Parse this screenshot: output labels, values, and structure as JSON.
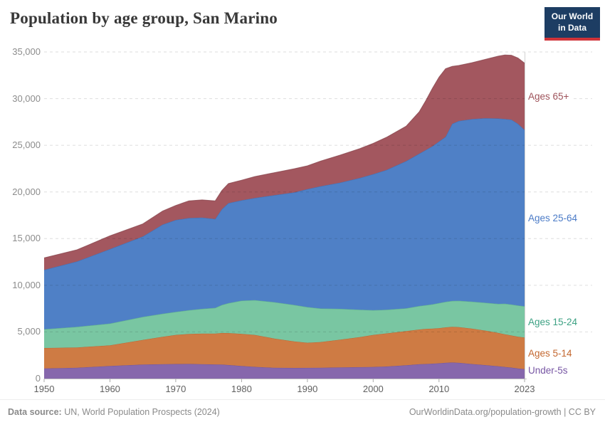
{
  "header": {
    "title": "Population by age group, San Marino"
  },
  "logo": {
    "line1": "Our World",
    "line2": "in Data",
    "bg_color": "#1d3d63",
    "accent_color": "#cf3339"
  },
  "footer": {
    "source_label": "Data source:",
    "source_text": " UN, World Population Prospects (2024)",
    "credit": "OurWorldinData.org/population-growth | CC BY"
  },
  "colors": {
    "grid": "rgba(0,0,0,0.13)",
    "baseline": "#c4c4c4",
    "tick": "#a8a8a8",
    "end_line": "#d2d2d2"
  },
  "chart_data": {
    "type": "area",
    "stacked": true,
    "title": "Population by age group, San Marino",
    "xlabel": "",
    "ylabel": "",
    "xlim": [
      1950,
      2023
    ],
    "ylim": [
      0,
      35000
    ],
    "grid": "dashed-horizontal",
    "legend_position": "right",
    "yticks": [
      {
        "value": 0,
        "label": "0"
      },
      {
        "value": 5000,
        "label": "5,000"
      },
      {
        "value": 10000,
        "label": "10,000"
      },
      {
        "value": 15000,
        "label": "15,000"
      },
      {
        "value": 20000,
        "label": "20,000"
      },
      {
        "value": 25000,
        "label": "25,000"
      },
      {
        "value": 30000,
        "label": "30,000"
      },
      {
        "value": 35000,
        "label": "35,000"
      }
    ],
    "xticks": [
      {
        "value": 1950,
        "label": "1950"
      },
      {
        "value": 1960,
        "label": "1960"
      },
      {
        "value": 1970,
        "label": "1970"
      },
      {
        "value": 1980,
        "label": "1980"
      },
      {
        "value": 1990,
        "label": "1990"
      },
      {
        "value": 2000,
        "label": "2000"
      },
      {
        "value": 2010,
        "label": "2010"
      },
      {
        "value": 2023,
        "label": "2023"
      }
    ],
    "x": [
      1950,
      1955,
      1960,
      1965,
      1968,
      1970,
      1972,
      1974,
      1976,
      1977,
      1978,
      1980,
      1982,
      1985,
      1988,
      1990,
      1992,
      1995,
      1998,
      2000,
      2002,
      2005,
      2007,
      2008,
      2009,
      2010,
      2011,
      2012,
      2013,
      2015,
      2017,
      2019,
      2020,
      2021,
      2022,
      2023
    ],
    "series": [
      {
        "id": "under-5s",
        "name": "Under-5s",
        "color": "#8667ac",
        "edge_color": "#6a4c92",
        "label_color": "#7756a4",
        "values": [
          1080,
          1170,
          1350,
          1500,
          1545,
          1560,
          1570,
          1550,
          1520,
          1500,
          1460,
          1350,
          1260,
          1160,
          1140,
          1150,
          1170,
          1200,
          1230,
          1250,
          1300,
          1430,
          1540,
          1560,
          1600,
          1640,
          1690,
          1720,
          1700,
          1560,
          1450,
          1330,
          1250,
          1180,
          1090,
          1020
        ]
      },
      {
        "id": "ages-5-14",
        "name": "Ages 5-14",
        "color": "#ce7b44",
        "edge_color": "#b05f2c",
        "label_color": "#c3672f",
        "values": [
          2200,
          2170,
          2220,
          2650,
          2935,
          3120,
          3220,
          3270,
          3300,
          3390,
          3420,
          3450,
          3420,
          3130,
          2850,
          2690,
          2750,
          2970,
          3220,
          3430,
          3540,
          3660,
          3720,
          3770,
          3760,
          3770,
          3800,
          3820,
          3820,
          3800,
          3700,
          3570,
          3490,
          3440,
          3400,
          3380
        ]
      },
      {
        "id": "ages-15-24",
        "name": "Ages 15-24",
        "color": "#79c6a2",
        "edge_color": "#51a77f",
        "label_color": "#3ca183",
        "values": [
          2010,
          2210,
          2330,
          2460,
          2470,
          2470,
          2540,
          2650,
          2760,
          3000,
          3200,
          3550,
          3720,
          3900,
          3900,
          3820,
          3590,
          3300,
          2930,
          2650,
          2540,
          2440,
          2520,
          2530,
          2600,
          2680,
          2740,
          2780,
          2820,
          2880,
          2980,
          3110,
          3290,
          3320,
          3340,
          3350
        ]
      },
      {
        "id": "ages-25-64",
        "name": "Ages 25-64",
        "color": "#4f80c6",
        "edge_color": "#3763a8",
        "label_color": "#4b7bc7",
        "values": [
          6350,
          7000,
          7980,
          8620,
          9550,
          9850,
          9870,
          9780,
          9520,
          10260,
          10720,
          10750,
          10950,
          11460,
          12060,
          12640,
          13090,
          13530,
          14120,
          14570,
          14970,
          15770,
          16320,
          16640,
          16940,
          17310,
          17670,
          18980,
          19260,
          19560,
          19770,
          19860,
          19790,
          19810,
          19470,
          18900
        ]
      },
      {
        "id": "ages-65plus",
        "name": "Ages 65+",
        "color": "#a3575f",
        "edge_color": "#86424a",
        "label_color": "#9e525a",
        "values": [
          1300,
          1250,
          1420,
          1350,
          1450,
          1550,
          1850,
          1900,
          1950,
          2000,
          2100,
          2160,
          2300,
          2420,
          2540,
          2500,
          2700,
          2950,
          3150,
          3300,
          3500,
          3750,
          4500,
          5300,
          6200,
          6900,
          7300,
          6150,
          5950,
          6050,
          6300,
          6680,
          6860,
          6900,
          7050,
          7150
        ]
      }
    ]
  }
}
